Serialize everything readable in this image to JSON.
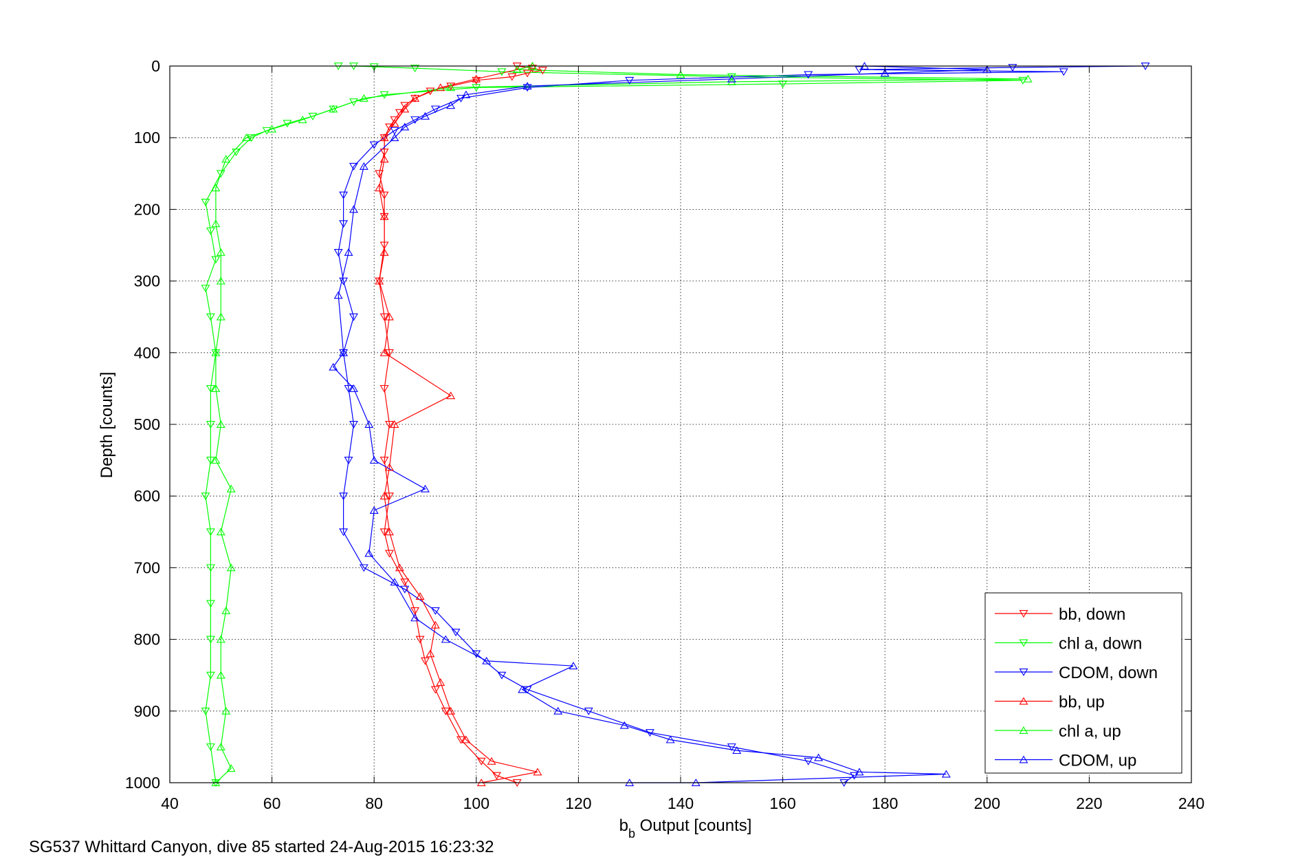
{
  "caption": "SG537 Whittard Canyon, dive 85 started 24-Aug-2015 16:23:32",
  "chart_data": {
    "type": "scatter",
    "xlabel_main": "b",
    "xlabel_sub": "b",
    "xlabel_rest": " Output [counts]",
    "ylabel": "Depth [counts]",
    "xlim": [
      40,
      240
    ],
    "ylim": [
      0,
      1000
    ],
    "y_reversed": true,
    "grid": true,
    "x_ticks": [
      40,
      60,
      80,
      100,
      120,
      140,
      160,
      180,
      200,
      220,
      240
    ],
    "y_ticks": [
      0,
      100,
      200,
      300,
      400,
      500,
      600,
      700,
      800,
      900,
      1000
    ],
    "legend_position": "bottom-right",
    "series": [
      {
        "name": "bb, down",
        "color": "#ff0000",
        "marker": "triangle-down",
        "points": [
          [
            108,
            0
          ],
          [
            111,
            3
          ],
          [
            113,
            6
          ],
          [
            110,
            10
          ],
          [
            107,
            15
          ],
          [
            100,
            20
          ],
          [
            95,
            28
          ],
          [
            91,
            35
          ],
          [
            88,
            45
          ],
          [
            86,
            55
          ],
          [
            85,
            65
          ],
          [
            84,
            75
          ],
          [
            83,
            85
          ],
          [
            82,
            100
          ],
          [
            82,
            120
          ],
          [
            81,
            150
          ],
          [
            82,
            180
          ],
          [
            82,
            210
          ],
          [
            82,
            250
          ],
          [
            81,
            300
          ],
          [
            82,
            350
          ],
          [
            83,
            400
          ],
          [
            82,
            450
          ],
          [
            83,
            500
          ],
          [
            82,
            550
          ],
          [
            83,
            600
          ],
          [
            82,
            650
          ],
          [
            83,
            680
          ],
          [
            86,
            720
          ],
          [
            88,
            760
          ],
          [
            89,
            800
          ],
          [
            90,
            830
          ],
          [
            92,
            870
          ],
          [
            94,
            900
          ],
          [
            97,
            940
          ],
          [
            101,
            970
          ],
          [
            104,
            990
          ],
          [
            108,
            1000
          ]
        ]
      },
      {
        "name": "chl a, down",
        "color": "#00ff00",
        "marker": "triangle-down",
        "points": [
          [
            73,
            0
          ],
          [
            76,
            0
          ],
          [
            80,
            1
          ],
          [
            88,
            3
          ],
          [
            105,
            8
          ],
          [
            150,
            15
          ],
          [
            207,
            20
          ],
          [
            160,
            25
          ],
          [
            100,
            30
          ],
          [
            82,
            40
          ],
          [
            76,
            50
          ],
          [
            72,
            60
          ],
          [
            68,
            70
          ],
          [
            63,
            80
          ],
          [
            59,
            90
          ],
          [
            56,
            100
          ],
          [
            53,
            120
          ],
          [
            50,
            150
          ],
          [
            47,
            190
          ],
          [
            48,
            230
          ],
          [
            49,
            270
          ],
          [
            47,
            310
          ],
          [
            48,
            350
          ],
          [
            49,
            400
          ],
          [
            48,
            450
          ],
          [
            48,
            500
          ],
          [
            48,
            550
          ],
          [
            47,
            600
          ],
          [
            48,
            650
          ],
          [
            48,
            700
          ],
          [
            48,
            750
          ],
          [
            48,
            800
          ],
          [
            48,
            850
          ],
          [
            47,
            900
          ],
          [
            48,
            950
          ],
          [
            49,
            1000
          ]
        ]
      },
      {
        "name": "CDOM, down",
        "color": "#0000ff",
        "marker": "triangle-down",
        "points": [
          [
            231,
            0
          ],
          [
            205,
            2
          ],
          [
            175,
            5
          ],
          [
            215,
            8
          ],
          [
            165,
            12
          ],
          [
            130,
            20
          ],
          [
            110,
            30
          ],
          [
            97,
            45
          ],
          [
            92,
            60
          ],
          [
            88,
            75
          ],
          [
            84,
            90
          ],
          [
            80,
            110
          ],
          [
            76,
            140
          ],
          [
            74,
            180
          ],
          [
            74,
            220
          ],
          [
            73,
            260
          ],
          [
            74,
            300
          ],
          [
            76,
            350
          ],
          [
            74,
            400
          ],
          [
            75,
            450
          ],
          [
            76,
            500
          ],
          [
            75,
            550
          ],
          [
            74,
            600
          ],
          [
            74,
            650
          ],
          [
            78,
            700
          ],
          [
            86,
            730
          ],
          [
            92,
            760
          ],
          [
            96,
            790
          ],
          [
            100,
            820
          ],
          [
            105,
            850
          ],
          [
            110,
            870
          ],
          [
            122,
            900
          ],
          [
            134,
            930
          ],
          [
            150,
            950
          ],
          [
            165,
            970
          ],
          [
            174,
            990
          ],
          [
            172,
            1000
          ]
        ]
      },
      {
        "name": "bb, up",
        "color": "#ff0000",
        "marker": "triangle-up",
        "points": [
          [
            111,
            0
          ],
          [
            108,
            5
          ],
          [
            100,
            18
          ],
          [
            93,
            30
          ],
          [
            88,
            45
          ],
          [
            86,
            60
          ],
          [
            84,
            80
          ],
          [
            82,
            100
          ],
          [
            82,
            130
          ],
          [
            81,
            170
          ],
          [
            82,
            210
          ],
          [
            82,
            260
          ],
          [
            81,
            300
          ],
          [
            83,
            350
          ],
          [
            82,
            400
          ],
          [
            95,
            460
          ],
          [
            84,
            500
          ],
          [
            83,
            560
          ],
          [
            82,
            600
          ],
          [
            83,
            650
          ],
          [
            85,
            700
          ],
          [
            89,
            740
          ],
          [
            92,
            780
          ],
          [
            91,
            820
          ],
          [
            93,
            860
          ],
          [
            95,
            900
          ],
          [
            98,
            940
          ],
          [
            103,
            970
          ],
          [
            112,
            985
          ],
          [
            101,
            1000
          ]
        ]
      },
      {
        "name": "chl a, up",
        "color": "#00ff00",
        "marker": "triangle-up",
        "points": [
          [
            111,
            0
          ],
          [
            108,
            5
          ],
          [
            140,
            12
          ],
          [
            208,
            18
          ],
          [
            150,
            22
          ],
          [
            95,
            30
          ],
          [
            78,
            45
          ],
          [
            72,
            60
          ],
          [
            66,
            75
          ],
          [
            60,
            88
          ],
          [
            55,
            100
          ],
          [
            51,
            130
          ],
          [
            49,
            170
          ],
          [
            49,
            220
          ],
          [
            50,
            260
          ],
          [
            50,
            300
          ],
          [
            50,
            350
          ],
          [
            49,
            400
          ],
          [
            49,
            450
          ],
          [
            50,
            500
          ],
          [
            49,
            550
          ],
          [
            52,
            590
          ],
          [
            50,
            650
          ],
          [
            52,
            700
          ],
          [
            51,
            760
          ],
          [
            50,
            800
          ],
          [
            50,
            850
          ],
          [
            51,
            900
          ],
          [
            50,
            950
          ],
          [
            52,
            980
          ],
          [
            49,
            1000
          ]
        ]
      },
      {
        "name": "CDOM, up",
        "color": "#0000ff",
        "marker": "triangle-up",
        "points": [
          [
            176,
            0
          ],
          [
            200,
            5
          ],
          [
            180,
            10
          ],
          [
            150,
            18
          ],
          [
            110,
            28
          ],
          [
            98,
            40
          ],
          [
            95,
            55
          ],
          [
            90,
            70
          ],
          [
            86,
            85
          ],
          [
            84,
            100
          ],
          [
            78,
            140
          ],
          [
            76,
            200
          ],
          [
            75,
            260
          ],
          [
            73,
            320
          ],
          [
            74,
            400
          ],
          [
            72,
            420
          ],
          [
            76,
            450
          ],
          [
            79,
            500
          ],
          [
            80,
            550
          ],
          [
            90,
            590
          ],
          [
            80,
            620
          ],
          [
            79,
            680
          ],
          [
            84,
            720
          ],
          [
            88,
            770
          ],
          [
            94,
            800
          ],
          [
            102,
            830
          ],
          [
            119,
            837
          ],
          [
            109,
            870
          ],
          [
            116,
            900
          ],
          [
            129,
            920
          ],
          [
            138,
            940
          ],
          [
            151,
            955
          ],
          [
            167,
            965
          ],
          [
            175,
            985
          ],
          [
            192,
            988
          ],
          [
            143,
            1000
          ],
          [
            130,
            1000
          ]
        ]
      }
    ]
  }
}
